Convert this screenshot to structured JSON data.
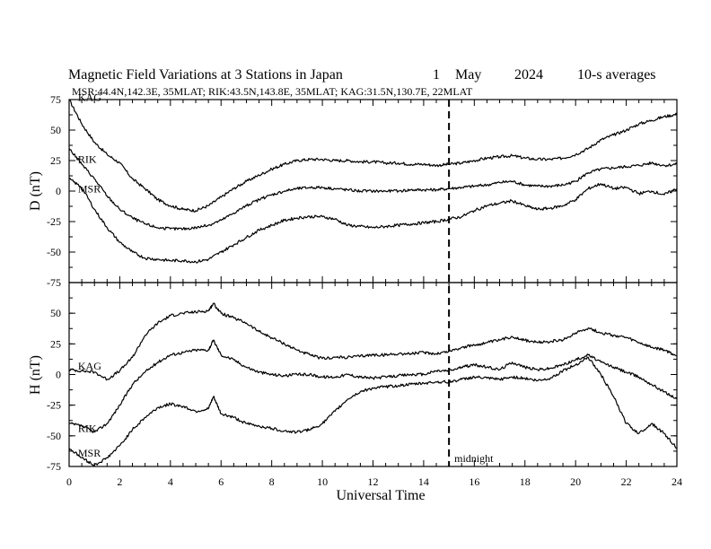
{
  "chart_data": {
    "type": "line",
    "title": "Magnetic Field Variations at 3 Stations in Japan",
    "date_day": "1",
    "date_month": "May",
    "date_year": "2024",
    "averaging": "10-s averages",
    "stations_line": "MSR:44.4N,142.3E, 35MLAT;   RIK:43.5N,143.8E, 35MLAT;   KAG:31.5N,130.7E, 22MLAT",
    "xlabel": "Universal Time",
    "xlim": [
      0,
      24
    ],
    "xticks": [
      "0",
      "2",
      "4",
      "6",
      "8",
      "10",
      "12",
      "14",
      "16",
      "18",
      "20",
      "22",
      "24"
    ],
    "midnight": {
      "x": 15,
      "label": "midnight"
    },
    "panels": [
      {
        "ylabel": "D (nT)",
        "ylim": [
          -75,
          75
        ],
        "yticks": [
          "75",
          "50",
          "25",
          "0",
          "-25",
          "-50",
          "-75"
        ],
        "series": [
          {
            "name": "KAG",
            "label_x": 0.35,
            "label_y": 77,
            "x": [
              0,
              0.5,
              1,
              1.5,
              2,
              2.5,
              3,
              3.5,
              4,
              4.5,
              5,
              5.5,
              6,
              6.5,
              7,
              7.5,
              8,
              8.5,
              9,
              9.5,
              10,
              10.5,
              11,
              11.5,
              12,
              12.5,
              13,
              13.5,
              14,
              14.5,
              15,
              15.5,
              16,
              16.5,
              17,
              17.5,
              18,
              18.5,
              19,
              19.5,
              20,
              20.5,
              21,
              21.5,
              22,
              22.5,
              23,
              23.5,
              24
            ],
            "y": [
              75,
              55,
              40,
              30,
              23,
              10,
              2,
              -7,
              -12,
              -15,
              -16,
              -12,
              -5,
              2,
              8,
              13,
              18,
              22,
              25,
              26,
              26,
              25,
              25,
              24,
              24,
              23,
              23,
              22,
              22,
              21,
              22,
              23,
              25,
              27,
              28,
              29,
              27,
              26,
              26,
              27,
              30,
              35,
              42,
              46,
              50,
              55,
              58,
              61,
              63
            ]
          },
          {
            "name": "RIK",
            "label_x": 0.35,
            "label_y": 26,
            "x": [
              0,
              0.5,
              1,
              1.5,
              2,
              2.5,
              3,
              3.5,
              4,
              4.5,
              5,
              5.5,
              6,
              6.5,
              7,
              7.5,
              8,
              8.5,
              9,
              9.5,
              10,
              10.5,
              11,
              11.5,
              12,
              12.5,
              13,
              13.5,
              14,
              14.5,
              15,
              15.5,
              16,
              16.5,
              17,
              17.5,
              18,
              18.5,
              19,
              19.5,
              20,
              20.5,
              21,
              21.5,
              22,
              22.5,
              23,
              23.5,
              24
            ],
            "y": [
              35,
              22,
              10,
              -4,
              -15,
              -22,
              -27,
              -30,
              -31,
              -31,
              -30,
              -28,
              -24,
              -18,
              -12,
              -7,
              -3,
              0,
              2,
              3,
              3,
              2,
              1,
              0,
              0,
              0,
              0,
              1,
              1,
              1,
              2,
              3,
              4,
              5,
              7,
              8,
              5,
              4,
              4,
              5,
              8,
              15,
              18,
              19,
              20,
              21,
              23,
              21,
              22
            ]
          },
          {
            "name": "MSR",
            "label_x": 0.35,
            "label_y": 2,
            "x": [
              0,
              0.5,
              1,
              1.5,
              2,
              2.5,
              3,
              3.5,
              4,
              4.5,
              5,
              5.5,
              6,
              6.5,
              7,
              7.5,
              8,
              8.5,
              9,
              9.5,
              10,
              10.5,
              11,
              11.5,
              12,
              12.5,
              13,
              13.5,
              14,
              14.5,
              15,
              15.5,
              16,
              16.5,
              17,
              17.5,
              18,
              18.5,
              19,
              19.5,
              20,
              20.5,
              21,
              21.5,
              22,
              22.5,
              23,
              23.5,
              24
            ],
            "y": [
              10,
              3,
              -15,
              -30,
              -42,
              -50,
              -55,
              -56,
              -57,
              -57,
              -58,
              -56,
              -50,
              -44,
              -38,
              -32,
              -28,
              -24,
              -22,
              -21,
              -21,
              -23,
              -28,
              -29,
              -30,
              -29,
              -28,
              -27,
              -26,
              -25,
              -23,
              -21,
              -16,
              -12,
              -10,
              -8,
              -12,
              -15,
              -14,
              -12,
              -7,
              2,
              6,
              2,
              3,
              -2,
              0,
              -3,
              2
            ]
          }
        ]
      },
      {
        "ylabel": "H (nT)",
        "ylim": [
          -75,
          75
        ],
        "yticks": [
          "75",
          "50",
          "25",
          "0",
          "-25",
          "-50",
          "-75"
        ],
        "series": [
          {
            "name": "KAG",
            "label_x": 0.35,
            "label_y": 7,
            "x": [
              0,
              0.5,
              1,
              1.5,
              2,
              2.5,
              3,
              3.5,
              4,
              4.5,
              5,
              5.5,
              5.7,
              6,
              6.5,
              7,
              7.5,
              8,
              8.5,
              9,
              9.5,
              10,
              10.5,
              11,
              11.5,
              12,
              12.5,
              13,
              13.5,
              14,
              14.5,
              15,
              15.5,
              16,
              16.5,
              17,
              17.5,
              18,
              18.5,
              19,
              19.5,
              20,
              20.5,
              21,
              21.5,
              22,
              22.5,
              23,
              23.5,
              24
            ],
            "y": [
              4,
              3,
              2,
              -4,
              3,
              14,
              32,
              42,
              48,
              50,
              51,
              52,
              58,
              50,
              46,
              42,
              35,
              30,
              25,
              20,
              16,
              13,
              14,
              14,
              15,
              16,
              16,
              17,
              17,
              18,
              17,
              19,
              22,
              24,
              26,
              28,
              31,
              28,
              26,
              27,
              28,
              34,
              38,
              34,
              32,
              30,
              26,
              22,
              20,
              15
            ]
          },
          {
            "name": "RIK",
            "label_x": 0.35,
            "label_y": -44,
            "x": [
              0,
              0.5,
              1,
              1.5,
              2,
              2.5,
              3,
              3.5,
              4,
              4.5,
              5,
              5.5,
              5.7,
              6,
              6.5,
              7,
              7.5,
              8,
              8.5,
              9,
              9.5,
              10,
              10.5,
              11,
              11.5,
              12,
              12.5,
              13,
              13.5,
              14,
              14.5,
              15,
              15.5,
              16,
              16.5,
              17,
              17.5,
              18,
              18.5,
              19,
              19.5,
              20,
              20.5,
              21,
              21.5,
              22,
              22.5,
              23,
              23.5,
              24
            ],
            "y": [
              -40,
              -42,
              -47,
              -40,
              -25,
              -8,
              2,
              10,
              16,
              18,
              20,
              20,
              28,
              16,
              12,
              6,
              2,
              0,
              -1,
              0,
              0,
              -2,
              -2,
              0,
              -2,
              -3,
              -2,
              -1,
              0,
              0,
              3,
              3,
              6,
              8,
              6,
              4,
              10,
              6,
              4,
              5,
              8,
              12,
              16,
              10,
              6,
              2,
              -2,
              -8,
              -14,
              -20
            ]
          },
          {
            "name": "MSR",
            "label_x": 0.35,
            "label_y": -64,
            "x": [
              0,
              0.5,
              1,
              1.5,
              2,
              2.5,
              3,
              3.5,
              4,
              4.5,
              5,
              5.5,
              5.7,
              6,
              6.5,
              7,
              7.5,
              8,
              8.5,
              9,
              9.5,
              10,
              10.5,
              11,
              11.5,
              12,
              12.5,
              13,
              13.5,
              14,
              14.5,
              15,
              15.5,
              16,
              16.5,
              17,
              17.5,
              18,
              18.5,
              19,
              19.5,
              20,
              20.5,
              21,
              21.5,
              22,
              22.5,
              23,
              23.5,
              24
            ],
            "y": [
              -60,
              -68,
              -74,
              -68,
              -58,
              -45,
              -35,
              -27,
              -24,
              -26,
              -30,
              -28,
              -18,
              -32,
              -35,
              -40,
              -42,
              -44,
              -46,
              -47,
              -45,
              -40,
              -30,
              -20,
              -14,
              -11,
              -10,
              -9,
              -8,
              -7,
              -6,
              -6,
              -4,
              -2,
              -3,
              -4,
              -2,
              -3,
              -5,
              -3,
              3,
              8,
              14,
              0,
              -18,
              -40,
              -48,
              -40,
              -48,
              -60
            ]
          }
        ]
      }
    ]
  }
}
